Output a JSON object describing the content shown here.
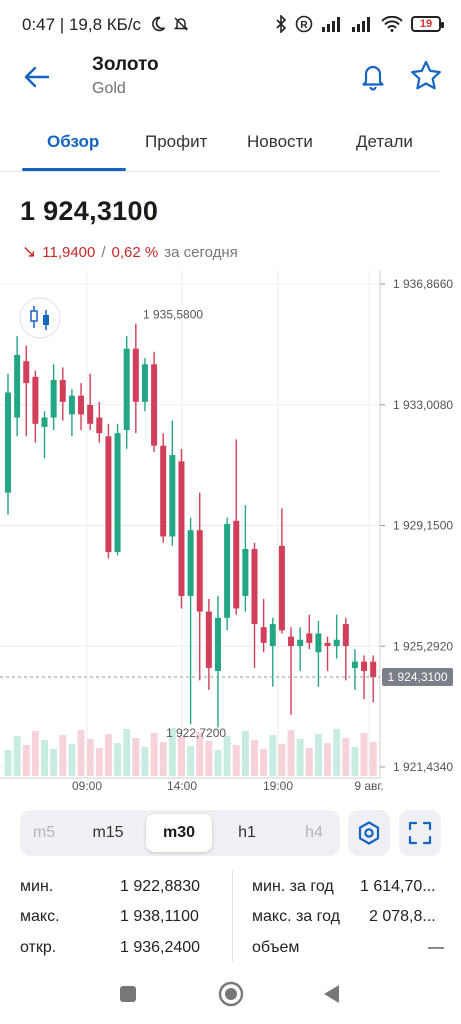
{
  "status_bar": {
    "text": "0:47 | 19,8 КБ/с",
    "battery": "19"
  },
  "header": {
    "title": "Золото",
    "subtitle": "Gold"
  },
  "tabs": [
    {
      "label": "Обзор",
      "active": true
    },
    {
      "label": "Профит",
      "active": false
    },
    {
      "label": "Новости",
      "active": false
    },
    {
      "label": "Детали",
      "active": false
    }
  ],
  "quote": {
    "price": "1 924,3100",
    "change": "11,9400",
    "separator": "/",
    "change_pct": "0,62 %",
    "period": "за сегодня"
  },
  "colors": {
    "up": "#22a683",
    "down": "#d23f5b",
    "accent": "#1565c0",
    "vol_up": "#c9ece2",
    "vol_down": "#f6d3da"
  },
  "chart_data": {
    "type": "candlestick",
    "y_ticks": [
      "1 936,8660",
      "1 933,0080",
      "1 929,1500",
      "1 925,2920",
      "1 921,4340"
    ],
    "x_ticks": [
      "09:00",
      "14:00",
      "19:00",
      "9 авг."
    ],
    "current_price_label": "1 924,3100",
    "max_label": "1 935,5800",
    "min_label": "1 922,7200",
    "ylim": [
      1921.434,
      1936.866
    ],
    "candles": [
      {
        "o": 1930.2,
        "h": 1934.0,
        "l": 1929.5,
        "c": 1933.4
      },
      {
        "o": 1932.6,
        "h": 1935.2,
        "l": 1932.0,
        "c": 1934.6
      },
      {
        "o": 1934.4,
        "h": 1934.9,
        "l": 1932.0,
        "c": 1933.7
      },
      {
        "o": 1933.9,
        "h": 1934.1,
        "l": 1931.8,
        "c": 1932.4
      },
      {
        "o": 1932.3,
        "h": 1932.8,
        "l": 1931.3,
        "c": 1932.6
      },
      {
        "o": 1932.6,
        "h": 1934.3,
        "l": 1932.2,
        "c": 1933.8
      },
      {
        "o": 1933.8,
        "h": 1934.2,
        "l": 1932.5,
        "c": 1933.1
      },
      {
        "o": 1932.7,
        "h": 1933.5,
        "l": 1932.0,
        "c": 1933.3
      },
      {
        "o": 1933.3,
        "h": 1933.7,
        "l": 1932.2,
        "c": 1932.7
      },
      {
        "o": 1933.0,
        "h": 1934.0,
        "l": 1932.2,
        "c": 1932.4
      },
      {
        "o": 1932.6,
        "h": 1933.1,
        "l": 1931.8,
        "c": 1932.1
      },
      {
        "o": 1932.0,
        "h": 1932.4,
        "l": 1928.1,
        "c": 1928.3
      },
      {
        "o": 1928.3,
        "h": 1932.4,
        "l": 1928.2,
        "c": 1932.1
      },
      {
        "o": 1932.2,
        "h": 1935.2,
        "l": 1931.6,
        "c": 1934.8
      },
      {
        "o": 1934.8,
        "h": 1935.6,
        "l": 1932.1,
        "c": 1933.1
      },
      {
        "o": 1933.1,
        "h": 1934.5,
        "l": 1932.8,
        "c": 1934.3
      },
      {
        "o": 1934.3,
        "h": 1934.7,
        "l": 1931.5,
        "c": 1931.7
      },
      {
        "o": 1931.7,
        "h": 1932.1,
        "l": 1928.6,
        "c": 1928.8
      },
      {
        "o": 1928.8,
        "h": 1932.5,
        "l": 1928.5,
        "c": 1931.4
      },
      {
        "o": 1931.2,
        "h": 1931.6,
        "l": 1926.5,
        "c": 1926.9
      },
      {
        "o": 1926.9,
        "h": 1929.4,
        "l": 1922.8,
        "c": 1929.0
      },
      {
        "o": 1929.0,
        "h": 1930.2,
        "l": 1924.2,
        "c": 1926.4
      },
      {
        "o": 1926.4,
        "h": 1926.8,
        "l": 1923.9,
        "c": 1924.6
      },
      {
        "o": 1924.5,
        "h": 1926.9,
        "l": 1922.7,
        "c": 1926.2
      },
      {
        "o": 1926.2,
        "h": 1929.4,
        "l": 1925.8,
        "c": 1929.2
      },
      {
        "o": 1929.3,
        "h": 1931.9,
        "l": 1926.3,
        "c": 1926.5
      },
      {
        "o": 1926.9,
        "h": 1929.8,
        "l": 1926.4,
        "c": 1928.4
      },
      {
        "o": 1928.4,
        "h": 1928.6,
        "l": 1924.6,
        "c": 1926.0
      },
      {
        "o": 1925.9,
        "h": 1926.8,
        "l": 1925.1,
        "c": 1925.4
      },
      {
        "o": 1925.3,
        "h": 1926.2,
        "l": 1924.0,
        "c": 1926.0
      },
      {
        "o": 1928.5,
        "h": 1929.7,
        "l": 1925.7,
        "c": 1925.8
      },
      {
        "o": 1925.6,
        "h": 1925.9,
        "l": 1923.1,
        "c": 1925.3
      },
      {
        "o": 1925.3,
        "h": 1925.9,
        "l": 1924.5,
        "c": 1925.5
      },
      {
        "o": 1925.7,
        "h": 1926.3,
        "l": 1925.2,
        "c": 1925.4
      },
      {
        "o": 1925.1,
        "h": 1926.1,
        "l": 1924.0,
        "c": 1925.7
      },
      {
        "o": 1925.4,
        "h": 1925.6,
        "l": 1924.5,
        "c": 1925.3
      },
      {
        "o": 1925.3,
        "h": 1926.3,
        "l": 1924.9,
        "c": 1925.5
      },
      {
        "o": 1926.0,
        "h": 1926.2,
        "l": 1924.2,
        "c": 1925.3
      },
      {
        "o": 1924.6,
        "h": 1925.2,
        "l": 1923.9,
        "c": 1924.8
      },
      {
        "o": 1924.8,
        "h": 1925.0,
        "l": 1923.6,
        "c": 1924.5
      },
      {
        "o": 1924.8,
        "h": 1925.0,
        "l": 1923.5,
        "c": 1924.3
      }
    ]
  },
  "timeframes": [
    {
      "label": "m5",
      "state": "faded"
    },
    {
      "label": "m15",
      "state": "normal"
    },
    {
      "label": "m30",
      "state": "active"
    },
    {
      "label": "h1",
      "state": "normal"
    },
    {
      "label": "h4",
      "state": "faded"
    }
  ],
  "stats": {
    "left": [
      {
        "label": "мин.",
        "value": "1 922,8830"
      },
      {
        "label": "макс.",
        "value": "1 938,1100"
      },
      {
        "label": "откр.",
        "value": "1 936,2400"
      }
    ],
    "right": [
      {
        "label": "мин. за год",
        "value": "1 614,70..."
      },
      {
        "label": "макс. за год",
        "value": "2 078,8..."
      },
      {
        "label": "объем",
        "value": "—"
      }
    ]
  }
}
